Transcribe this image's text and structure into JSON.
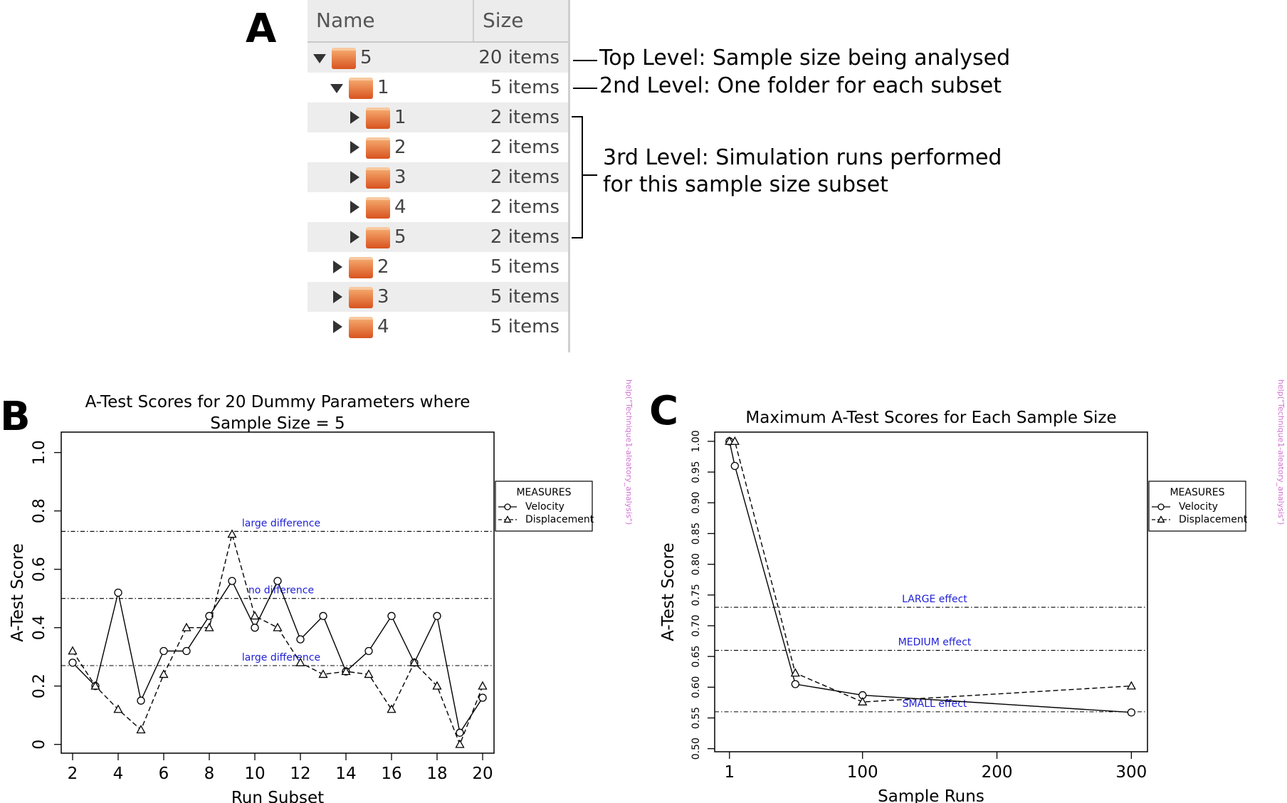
{
  "panels": {
    "a": "A",
    "b": "B",
    "c": "C"
  },
  "file_manager": {
    "headers": {
      "name": "Name",
      "size": "Size"
    },
    "rows": [
      {
        "level": 0,
        "expanded": true,
        "name": "5",
        "size": "20 items"
      },
      {
        "level": 1,
        "expanded": true,
        "name": "1",
        "size": "5 items"
      },
      {
        "level": 2,
        "expanded": false,
        "name": "1",
        "size": "2 items"
      },
      {
        "level": 2,
        "expanded": false,
        "name": "2",
        "size": "2 items"
      },
      {
        "level": 2,
        "expanded": false,
        "name": "3",
        "size": "2 items"
      },
      {
        "level": 2,
        "expanded": false,
        "name": "4",
        "size": "2 items"
      },
      {
        "level": 2,
        "expanded": false,
        "name": "5",
        "size": "2 items"
      },
      {
        "level": 1,
        "expanded": false,
        "name": "2",
        "size": "5 items"
      },
      {
        "level": 1,
        "expanded": false,
        "name": "3",
        "size": "5 items"
      },
      {
        "level": 1,
        "expanded": false,
        "name": "4",
        "size": "5 items"
      }
    ]
  },
  "annotations": {
    "top_level": "Top Level: Sample size being analysed",
    "second_level": "2nd Level: One folder for each subset",
    "third_level_1": "3rd Level: Simulation runs performed",
    "third_level_2": "for this sample size subset"
  },
  "chart_data": [
    {
      "id": "B",
      "type": "line",
      "title_lines": [
        "A-Test Scores for 20 Dummy Parameters where",
        "Sample Size = 5"
      ],
      "xlabel": "Run Subset",
      "ylabel": "A-Test Score",
      "xlim": [
        1.5,
        20.5
      ],
      "ylim": [
        -0.03,
        1.07
      ],
      "xticks": [
        2,
        4,
        6,
        8,
        10,
        12,
        14,
        16,
        18,
        20
      ],
      "xtick_labels": [
        "2",
        "4",
        "6",
        "8",
        "10",
        "12",
        "14",
        "16",
        "18",
        "20"
      ],
      "yticks": [
        0,
        0.2,
        0.4,
        0.6,
        0.8,
        1.0
      ],
      "ytick_labels": [
        "0",
        "0.2",
        "0.4",
        "0.6",
        "0.8",
        "1.0"
      ],
      "x": [
        2,
        3,
        4,
        5,
        6,
        7,
        8,
        9,
        10,
        11,
        12,
        13,
        14,
        15,
        16,
        17,
        18,
        19,
        20
      ],
      "series": [
        {
          "name": "Velocity",
          "marker": "circle",
          "dash": "solid",
          "values": [
            0.28,
            0.2,
            0.52,
            0.15,
            0.32,
            0.32,
            0.44,
            0.56,
            0.4,
            0.56,
            0.36,
            0.44,
            0.25,
            0.32,
            0.44,
            0.28,
            0.44,
            0.04,
            0.16
          ]
        },
        {
          "name": "Displacement",
          "marker": "triangle",
          "dash": "dashed",
          "values": [
            0.32,
            0.2,
            0.12,
            0.05,
            0.24,
            0.4,
            0.4,
            0.72,
            0.44,
            0.4,
            0.28,
            0.24,
            0.25,
            0.24,
            0.12,
            0.28,
            0.2,
            0.0,
            0.2
          ]
        }
      ],
      "reference_lines": [
        {
          "y": 0.73,
          "label": "large difference"
        },
        {
          "y": 0.5,
          "label": "no difference"
        },
        {
          "y": 0.27,
          "label": "large difference"
        }
      ],
      "legend": {
        "title": "MEASURES",
        "placement": "outside-right"
      },
      "side_note": "help(\"Technique1-aleatory_analysis\")",
      "colors": {
        "reference_label": "#1f1fd6",
        "side_note": "#d070d0",
        "lines": "#000000"
      }
    },
    {
      "id": "C",
      "type": "line",
      "title_lines": [
        "Maximum A-Test Scores for Each Sample Size"
      ],
      "xlabel": "Sample Runs",
      "ylabel": "A-Test Score",
      "xlim": [
        -10,
        312
      ],
      "ylim": [
        0.495,
        1.015
      ],
      "xticks": [
        1,
        100,
        200,
        300
      ],
      "xtick_labels": [
        "1",
        "100",
        "200",
        "300"
      ],
      "yticks": [
        0.5,
        0.55,
        0.6,
        0.65,
        0.7,
        0.75,
        0.8,
        0.85,
        0.9,
        0.95,
        1.0
      ],
      "ytick_labels": [
        "0.50",
        "0.55",
        "0.60",
        "0.65",
        "0.70",
        "0.75",
        "0.80",
        "0.85",
        "0.90",
        "0.95",
        "1.00"
      ],
      "series": [
        {
          "name": "Velocity",
          "marker": "circle",
          "dash": "solid",
          "x": [
            1,
            5,
            50,
            100,
            300
          ],
          "values": [
            1.0,
            0.96,
            0.605,
            0.587,
            0.559
          ]
        },
        {
          "name": "Displacement",
          "marker": "triangle",
          "dash": "dashed",
          "x": [
            1,
            5,
            50,
            100,
            300
          ],
          "values": [
            1.0,
            1.0,
            0.623,
            0.576,
            0.602
          ]
        }
      ],
      "reference_lines": [
        {
          "y": 0.73,
          "label": "LARGE effect"
        },
        {
          "y": 0.66,
          "label": "MEDIUM effect"
        },
        {
          "y": 0.56,
          "label": "SMALL effect"
        }
      ],
      "legend": {
        "title": "MEASURES",
        "placement": "outside-right"
      },
      "side_note": "help(\"Technique1-aleatory_analysis\")",
      "colors": {
        "reference_label": "#1f1fd6",
        "side_note": "#d070d0",
        "lines": "#000000"
      }
    }
  ]
}
